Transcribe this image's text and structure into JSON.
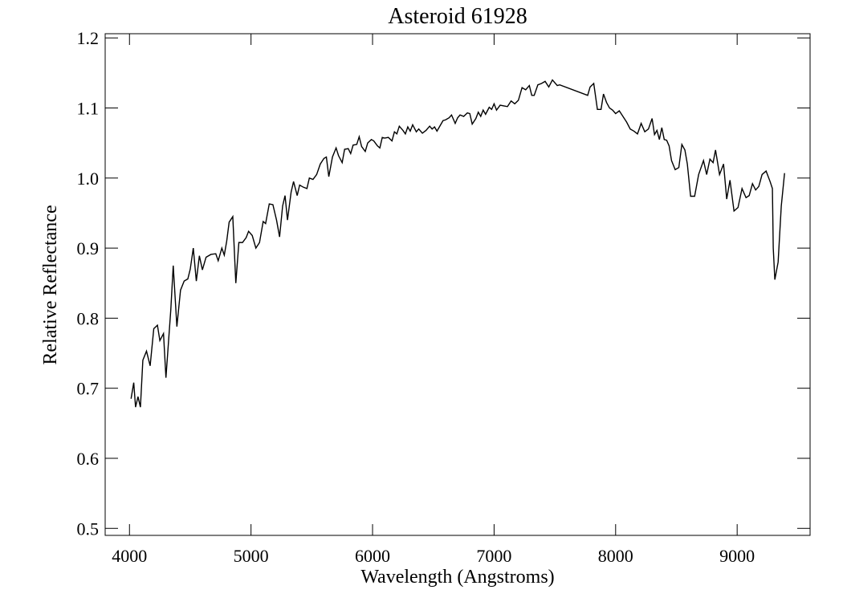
{
  "chart_data": {
    "type": "line",
    "title": "Asteroid 61928",
    "xlabel": "Wavelength (Angstroms)",
    "ylabel": "Relative Reflectance",
    "color": "#000000",
    "xlim": [
      3800,
      9600
    ],
    "ylim": [
      0.49,
      1.206
    ],
    "xticks": [
      4000,
      5000,
      6000,
      7000,
      8000,
      9000
    ],
    "yticks": [
      0.5,
      0.6,
      0.7,
      0.8,
      0.9,
      {
        "value": 1,
        "label": "1.0"
      },
      1.1,
      1.2
    ],
    "x": [
      4013,
      4035,
      4050,
      4070,
      4090,
      4110,
      4140,
      4170,
      4200,
      4230,
      4250,
      4280,
      4300,
      4340,
      4360,
      4390,
      4420,
      4450,
      4480,
      4500,
      4525,
      4550,
      4575,
      4600,
      4630,
      4670,
      4710,
      4730,
      4760,
      4780,
      4800,
      4820,
      4850,
      4875,
      4900,
      4930,
      4960,
      4980,
      5010,
      5040,
      5070,
      5100,
      5120,
      5150,
      5180,
      5210,
      5235,
      5260,
      5280,
      5300,
      5330,
      5350,
      5380,
      5400,
      5430,
      5460,
      5480,
      5510,
      5540,
      5570,
      5600,
      5620,
      5640,
      5670,
      5700,
      5720,
      5750,
      5770,
      5800,
      5820,
      5840,
      5870,
      5890,
      5910,
      5940,
      5960,
      5990,
      6010,
      6040,
      6060,
      6080,
      6100,
      6130,
      6160,
      6180,
      6200,
      6220,
      6250,
      6270,
      6290,
      6310,
      6330,
      6360,
      6380,
      6410,
      6440,
      6470,
      6490,
      6510,
      6530,
      6550,
      6580,
      6600,
      6630,
      6650,
      6680,
      6700,
      6720,
      6750,
      6780,
      6800,
      6820,
      6850,
      6870,
      6890,
      6910,
      6930,
      6960,
      6980,
      7000,
      7020,
      7050,
      7080,
      7110,
      7140,
      7170,
      7200,
      7230,
      7260,
      7290,
      7310,
      7330,
      7360,
      7390,
      7420,
      7450,
      7480,
      7520,
      7540,
      7770,
      7790,
      7820,
      7850,
      7880,
      7900,
      7925,
      7950,
      7975,
      8000,
      8030,
      8060,
      8090,
      8120,
      8150,
      8180,
      8210,
      8240,
      8270,
      8300,
      8320,
      8340,
      8360,
      8380,
      8400,
      8420,
      8440,
      8460,
      8490,
      8520,
      8545,
      8570,
      8590,
      8617,
      8650,
      8683,
      8723,
      8749,
      8776,
      8802,
      8822,
      8855,
      8888,
      8914,
      8941,
      8974,
      9007,
      9040,
      9073,
      9099,
      9126,
      9152,
      9178,
      9205,
      9238,
      9271,
      9290,
      9297,
      9310,
      9337,
      9363,
      9390
    ],
    "values": [
      0.685,
      0.708,
      0.673,
      0.688,
      0.673,
      0.74,
      0.753,
      0.732,
      0.785,
      0.79,
      0.768,
      0.778,
      0.715,
      0.812,
      0.875,
      0.788,
      0.84,
      0.853,
      0.856,
      0.87,
      0.9,
      0.853,
      0.889,
      0.869,
      0.887,
      0.891,
      0.892,
      0.882,
      0.9,
      0.89,
      0.91,
      0.937,
      0.945,
      0.85,
      0.908,
      0.908,
      0.915,
      0.924,
      0.918,
      0.9,
      0.908,
      0.938,
      0.935,
      0.963,
      0.962,
      0.94,
      0.916,
      0.96,
      0.975,
      0.94,
      0.98,
      0.995,
      0.975,
      0.99,
      0.987,
      0.985,
      1.0,
      0.998,
      1.005,
      1.02,
      1.028,
      1.03,
      1.002,
      1.03,
      1.043,
      1.032,
      1.022,
      1.041,
      1.042,
      1.035,
      1.047,
      1.048,
      1.059,
      1.045,
      1.038,
      1.05,
      1.055,
      1.053,
      1.046,
      1.043,
      1.058,
      1.057,
      1.058,
      1.053,
      1.066,
      1.063,
      1.074,
      1.068,
      1.063,
      1.073,
      1.067,
      1.076,
      1.066,
      1.07,
      1.064,
      1.068,
      1.074,
      1.07,
      1.073,
      1.067,
      1.073,
      1.082,
      1.083,
      1.086,
      1.09,
      1.078,
      1.086,
      1.09,
      1.088,
      1.093,
      1.092,
      1.077,
      1.085,
      1.094,
      1.088,
      1.097,
      1.091,
      1.101,
      1.098,
      1.106,
      1.097,
      1.104,
      1.103,
      1.102,
      1.11,
      1.106,
      1.111,
      1.129,
      1.126,
      1.132,
      1.118,
      1.118,
      1.133,
      1.135,
      1.138,
      1.13,
      1.14,
      1.132,
      1.133,
      1.118,
      1.13,
      1.135,
      1.098,
      1.098,
      1.12,
      1.108,
      1.1,
      1.097,
      1.092,
      1.096,
      1.088,
      1.08,
      1.07,
      1.067,
      1.063,
      1.078,
      1.066,
      1.07,
      1.085,
      1.062,
      1.068,
      1.055,
      1.072,
      1.055,
      1.054,
      1.046,
      1.025,
      1.012,
      1.015,
      1.048,
      1.04,
      1.02,
      0.974,
      0.974,
      1.005,
      1.025,
      1.005,
      1.027,
      1.022,
      1.04,
      1.005,
      1.02,
      0.97,
      0.997,
      0.953,
      0.958,
      0.985,
      0.972,
      0.975,
      0.992,
      0.983,
      0.988,
      1.005,
      1.01,
      0.995,
      0.985,
      0.9,
      0.855,
      0.88,
      0.96,
      1.007
    ]
  }
}
